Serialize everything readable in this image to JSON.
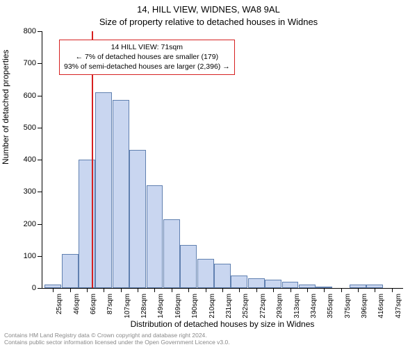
{
  "title_line1": "14, HILL VIEW, WIDNES, WA8 9AL",
  "title_line2": "Size of property relative to detached houses in Widnes",
  "y_label": "Number of detached properties",
  "x_label": "Distribution of detached houses by size in Widnes",
  "chart": {
    "type": "histogram",
    "ylim": [
      0,
      800
    ],
    "ytick_step": 100,
    "yticks": [
      0,
      100,
      200,
      300,
      400,
      500,
      600,
      700,
      800
    ],
    "bar_fill": "#c9d6f0",
    "bar_stroke": "#6080b0",
    "ref_line_color": "#d62020",
    "info_box_border": "#d62020",
    "background": "#ffffff",
    "categories": [
      "25sqm",
      "46sqm",
      "66sqm",
      "87sqm",
      "107sqm",
      "128sqm",
      "149sqm",
      "169sqm",
      "190sqm",
      "210sqm",
      "231sqm",
      "252sqm",
      "272sqm",
      "293sqm",
      "313sqm",
      "334sqm",
      "355sqm",
      "375sqm",
      "396sqm",
      "416sqm",
      "437sqm"
    ],
    "values": [
      10,
      105,
      400,
      610,
      585,
      430,
      320,
      215,
      135,
      90,
      75,
      40,
      30,
      25,
      20,
      10,
      5,
      0,
      10,
      10,
      0
    ],
    "ref_line_index": 2.3
  },
  "info_box": {
    "line1": "14 HILL VIEW: 71sqm",
    "line2": "← 7% of detached houses are smaller (179)",
    "line3": "93% of semi-detached houses are larger (2,396) →"
  },
  "footer": {
    "line1": "Contains HM Land Registry data © Crown copyright and database right 2024.",
    "line2": "Contains public sector information licensed under the Open Government Licence v3.0."
  }
}
